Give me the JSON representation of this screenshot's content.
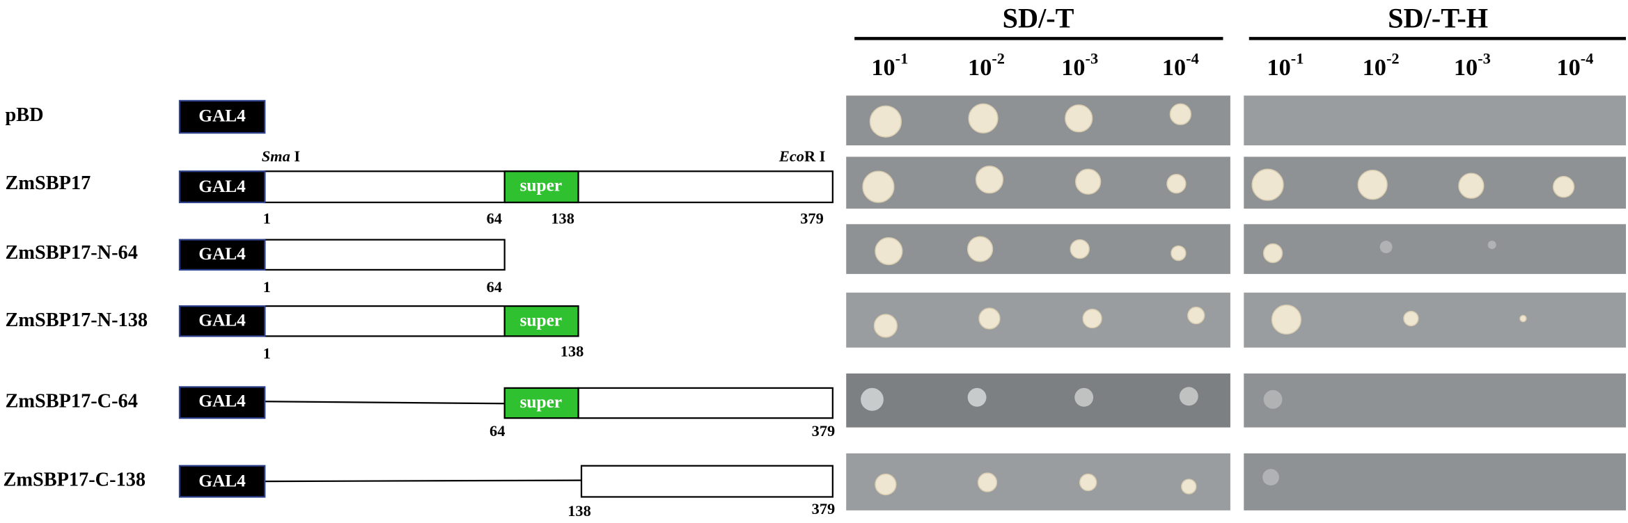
{
  "headers": [
    {
      "title": "SD/-T",
      "dilutions": [
        {
          "base": "10",
          "exp": "-1"
        },
        {
          "base": "10",
          "exp": "-2"
        },
        {
          "base": "10",
          "exp": "-3"
        },
        {
          "base": "10",
          "exp": "-4"
        }
      ]
    },
    {
      "title": "SD/-T-H",
      "dilutions": [
        {
          "base": "10",
          "exp": "-1"
        },
        {
          "base": "10",
          "exp": "-2"
        },
        {
          "base": "10",
          "exp": "-3"
        },
        {
          "base": "10",
          "exp": "-4"
        }
      ]
    }
  ],
  "restriction_sites": [
    {
      "italic": "Sma",
      "rest": " I"
    },
    {
      "italic": "Eco",
      "rest": "R I"
    }
  ],
  "constructs": [
    {
      "label": "pBD",
      "tag": "GAL4"
    },
    {
      "label": "ZmSBP17",
      "tag": "GAL4",
      "domain": "super",
      "positions": [
        1,
        64,
        138,
        379
      ]
    },
    {
      "label": "ZmSBP17-N-64",
      "tag": "GAL4",
      "positions": [
        1,
        64
      ]
    },
    {
      "label": "ZmSBP17-N-138",
      "tag": "GAL4",
      "domain": "super",
      "positions": [
        1,
        138
      ]
    },
    {
      "label": "ZmSBP17-C-64",
      "tag": "GAL4",
      "domain": "super",
      "positions": [
        64,
        379
      ]
    },
    {
      "label": "ZmSBP17-C-138",
      "tag": "GAL4",
      "positions": [
        138,
        379
      ]
    }
  ]
}
